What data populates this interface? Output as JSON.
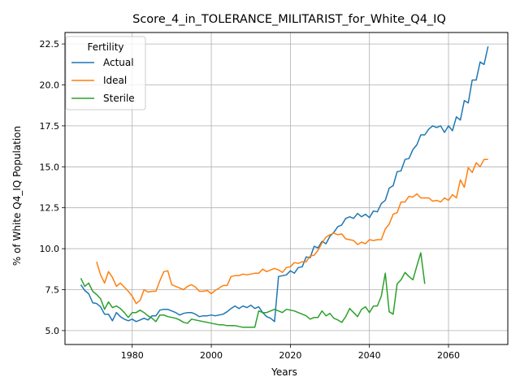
{
  "chart_data": {
    "type": "line",
    "title": "Score_4_in_TOLERANCE_MILITARIST_for_White_Q4_IQ",
    "xlabel": "Years",
    "ylabel": "% of White Q4_IQ Population",
    "xlim": [
      1963,
      2075
    ],
    "ylim": [
      4.15,
      23.2
    ],
    "xticks": [
      1980,
      2000,
      2020,
      2040,
      2060
    ],
    "yticks": [
      5.0,
      7.5,
      10.0,
      12.5,
      15.0,
      17.5,
      20.0,
      22.5
    ],
    "xtick_labels": [
      "1980",
      "2000",
      "2020",
      "2040",
      "2060"
    ],
    "ytick_labels": [
      "5.0",
      "7.5",
      "10.0",
      "12.5",
      "15.0",
      "17.5",
      "20.0",
      "22.5"
    ],
    "grid": true,
    "legend": {
      "title": "Fertility",
      "position": "top-left"
    },
    "series": [
      {
        "name": "Actual",
        "color": "#1f77b4",
        "x": [
          1967,
          1968,
          1969,
          1970,
          1971,
          1972,
          1973,
          1974,
          1975,
          1976,
          1977,
          1978,
          1979,
          1980,
          1981,
          1982,
          1983,
          1984,
          1985,
          1986,
          1987,
          1988,
          1989,
          1990,
          1991,
          1992,
          1993,
          1994,
          1995,
          1996,
          1997,
          1998,
          1999,
          2000,
          2001,
          2002,
          2003,
          2004,
          2005,
          2006,
          2007,
          2008,
          2009,
          2010,
          2011,
          2012,
          2013,
          2014,
          2015,
          2016,
          2017,
          2018,
          2019,
          2020,
          2021,
          2022,
          2023,
          2024,
          2025,
          2026,
          2027,
          2028,
          2029,
          2030,
          2031,
          2032,
          2033,
          2034,
          2035,
          2036,
          2037,
          2038,
          2039,
          2040,
          2041,
          2042,
          2043,
          2044,
          2045,
          2046,
          2047,
          2048,
          2049,
          2050,
          2051,
          2052,
          2053,
          2054,
          2055,
          2056,
          2057,
          2058,
          2059,
          2060,
          2061,
          2062,
          2063,
          2064,
          2065,
          2066,
          2067,
          2068,
          2069,
          2070
        ],
        "values": [
          7.8,
          7.45,
          7.25,
          6.7,
          6.65,
          6.45,
          6.0,
          6.0,
          5.6,
          6.1,
          5.85,
          5.7,
          5.6,
          5.7,
          5.55,
          5.65,
          5.75,
          5.65,
          5.9,
          5.9,
          6.25,
          6.3,
          6.3,
          6.2,
          6.1,
          5.95,
          6.05,
          6.1,
          6.1,
          6.0,
          5.85,
          5.9,
          5.9,
          5.95,
          5.9,
          5.95,
          6.0,
          6.15,
          6.35,
          6.5,
          6.35,
          6.5,
          6.4,
          6.55,
          6.35,
          6.45,
          6.1,
          5.85,
          5.75,
          5.55,
          8.3,
          8.35,
          8.4,
          8.65,
          8.5,
          8.85,
          8.9,
          9.5,
          9.45,
          10.15,
          10.05,
          10.45,
          10.3,
          10.75,
          11.0,
          11.35,
          11.45,
          11.85,
          11.95,
          11.85,
          12.15,
          11.95,
          12.1,
          11.9,
          12.3,
          12.25,
          12.75,
          12.95,
          13.7,
          13.85,
          14.7,
          14.75,
          15.45,
          15.5,
          16.05,
          16.35,
          16.95,
          16.95,
          17.3,
          17.5,
          17.4,
          17.5,
          17.1,
          17.5,
          17.2,
          18.05,
          17.85,
          19.05,
          18.9,
          20.3,
          20.3,
          21.4,
          21.25,
          22.35
        ]
      },
      {
        "name": "Ideal",
        "color": "#ff7f0e",
        "x": [
          1971,
          1972,
          1973,
          1974,
          1975,
          1976,
          1977,
          1978,
          1979,
          1980,
          1981,
          1982,
          1983,
          1984,
          1985,
          1986,
          1987,
          1988,
          1989,
          1990,
          1991,
          1992,
          1993,
          1994,
          1995,
          1996,
          1997,
          1998,
          1999,
          2000,
          2001,
          2002,
          2003,
          2004,
          2005,
          2006,
          2007,
          2008,
          2009,
          2010,
          2011,
          2012,
          2013,
          2014,
          2015,
          2016,
          2017,
          2018,
          2019,
          2020,
          2021,
          2022,
          2023,
          2024,
          2025,
          2026,
          2027,
          2028,
          2029,
          2030,
          2031,
          2032,
          2033,
          2034,
          2035,
          2036,
          2037,
          2038,
          2039,
          2040,
          2041,
          2042,
          2043,
          2044,
          2045,
          2046,
          2047,
          2048,
          2049,
          2050,
          2051,
          2052,
          2053,
          2054,
          2055,
          2056,
          2057,
          2058,
          2059,
          2060,
          2061,
          2062,
          2063,
          2064,
          2065,
          2066,
          2067,
          2068,
          2069,
          2070
        ],
        "values": [
          9.2,
          8.4,
          7.9,
          8.6,
          8.25,
          7.7,
          7.9,
          7.65,
          7.4,
          7.1,
          6.65,
          6.85,
          7.5,
          7.35,
          7.4,
          7.4,
          8.05,
          8.6,
          8.65,
          7.8,
          7.7,
          7.6,
          7.5,
          7.7,
          7.8,
          7.65,
          7.4,
          7.4,
          7.45,
          7.25,
          7.45,
          7.6,
          7.75,
          7.75,
          8.3,
          8.35,
          8.35,
          8.45,
          8.4,
          8.45,
          8.5,
          8.5,
          8.75,
          8.6,
          8.7,
          8.8,
          8.7,
          8.55,
          8.85,
          8.9,
          9.15,
          9.1,
          9.2,
          9.2,
          9.55,
          9.6,
          9.9,
          10.35,
          10.7,
          10.85,
          10.95,
          10.85,
          10.9,
          10.6,
          10.55,
          10.5,
          10.25,
          10.4,
          10.3,
          10.55,
          10.5,
          10.55,
          10.55,
          11.2,
          11.5,
          12.1,
          12.2,
          12.85,
          12.85,
          13.2,
          13.15,
          13.35,
          13.1,
          13.1,
          13.1,
          12.9,
          12.95,
          12.85,
          13.1,
          12.95,
          13.3,
          13.1,
          14.2,
          13.75,
          14.95,
          14.65,
          15.25,
          15.0,
          15.45,
          15.45
        ]
      },
      {
        "name": "Sterile",
        "color": "#2ca02c",
        "x": [
          1967,
          1968,
          1969,
          1970,
          1971,
          1972,
          1973,
          1974,
          1975,
          1976,
          1977,
          1978,
          1979,
          1980,
          1981,
          1982,
          1983,
          1984,
          1985,
          1986,
          1987,
          1988,
          1989,
          1990,
          1991,
          1992,
          1993,
          1994,
          1995,
          1996,
          1997,
          1998,
          1999,
          2000,
          2001,
          2002,
          2003,
          2004,
          2005,
          2006,
          2007,
          2008,
          2009,
          2010,
          2011,
          2012,
          2013,
          2014,
          2015,
          2016,
          2017,
          2018,
          2019,
          2020,
          2021,
          2022,
          2023,
          2024,
          2025,
          2026,
          2027,
          2028,
          2029,
          2030,
          2031,
          2032,
          2033,
          2034,
          2035,
          2036,
          2037,
          2038,
          2039,
          2040,
          2041,
          2042,
          2043,
          2044,
          2045,
          2046,
          2047,
          2048,
          2049,
          2050,
          2051,
          2052,
          2053,
          2054
        ],
        "values": [
          8.2,
          7.7,
          7.9,
          7.4,
          7.2,
          6.95,
          6.3,
          6.75,
          6.4,
          6.5,
          6.35,
          6.1,
          5.8,
          6.1,
          6.1,
          6.25,
          6.1,
          5.9,
          5.75,
          5.55,
          5.95,
          5.95,
          5.85,
          5.8,
          5.75,
          5.65,
          5.5,
          5.45,
          5.7,
          5.65,
          5.6,
          5.55,
          5.5,
          5.45,
          5.4,
          5.35,
          5.35,
          5.3,
          5.3,
          5.3,
          5.25,
          5.2,
          5.2,
          5.2,
          5.2,
          6.2,
          6.1,
          6.1,
          6.2,
          6.3,
          6.2,
          6.1,
          6.3,
          6.25,
          6.2,
          6.1,
          6.0,
          5.9,
          5.7,
          5.8,
          5.8,
          6.2,
          5.9,
          6.05,
          5.75,
          5.65,
          5.5,
          5.85,
          6.35,
          6.1,
          5.85,
          6.3,
          6.45,
          6.1,
          6.5,
          6.5,
          7.1,
          8.5,
          6.15,
          6.0,
          7.85,
          8.1,
          8.55,
          8.3,
          8.1,
          8.95,
          9.75,
          7.85
        ]
      }
    ]
  }
}
